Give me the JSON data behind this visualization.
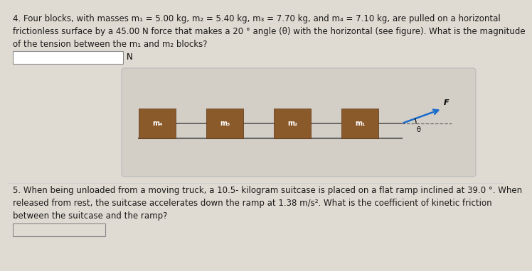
{
  "page_bg": "#e0dbd2",
  "title_text": "4. Four blocks, with masses m₁ = 5.00 kg, m₂ = 5.40 kg, m₃ = 7.70 kg, and m₄ = 7.10 kg, are pulled on a horizontal",
  "line2_text": "frictionless surface by a 45.00 N force that makes a 20 ° angle (θ) with the horizontal (see figure). What is the magnitude",
  "line3_text": "of the tension between the m₁ and m₂ blocks?",
  "unit_label": "N",
  "diagram_bg": "#d4cfc6",
  "block_color": "#8B5A2B",
  "block_labels": [
    "m₄",
    "m₃",
    "m₂",
    "m₁"
  ],
  "line_color": "#555555",
  "arrow_color": "#1a6bcc",
  "force_label": "F",
  "angle_label": "θ",
  "q5_line1": "5. When being unloaded from a moving truck, a 10.5- kilogram suitcase is placed on a flat ramp inclined at 39.0 °. When",
  "q5_line2": "released from rest, the suitcase accelerates down the ramp at 1.38 m/s². What is the coefficient of kinetic friction",
  "q5_line3": "between the suitcase and the ramp?"
}
